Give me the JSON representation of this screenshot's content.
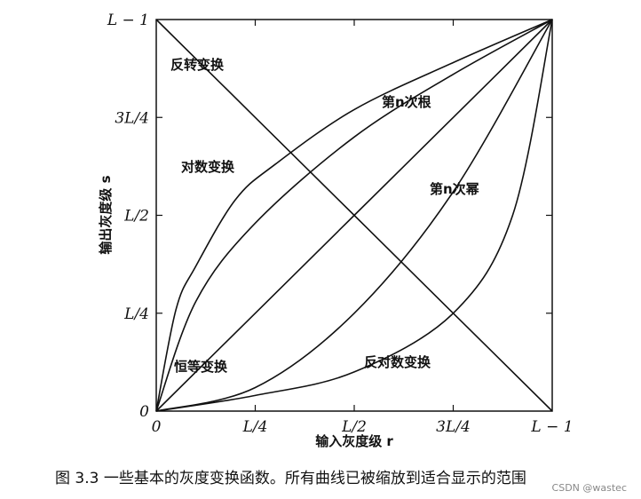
{
  "chart_data": {
    "type": "line",
    "xlabel": "输入灰度级 r",
    "ylabel": "输出灰度级 s",
    "xlim": [
      0,
      1
    ],
    "ylim": [
      0,
      1
    ],
    "x_ticks": [
      {
        "value": 0,
        "label": "0"
      },
      {
        "value": 0.25,
        "label": "L/4"
      },
      {
        "value": 0.5,
        "label": "L/2"
      },
      {
        "value": 0.75,
        "label": "3L/4"
      },
      {
        "value": 1,
        "label": "L − 1"
      }
    ],
    "y_ticks": [
      {
        "value": 0,
        "label": "0"
      },
      {
        "value": 0.25,
        "label": "L/4"
      },
      {
        "value": 0.5,
        "label": "L/2"
      },
      {
        "value": 0.75,
        "label": "3L/4"
      },
      {
        "value": 1,
        "label": "L − 1"
      }
    ],
    "grid": false,
    "series": [
      {
        "name": "反转变换",
        "values": [
          [
            0,
            1
          ],
          [
            0.25,
            0.75
          ],
          [
            0.5,
            0.5
          ],
          [
            0.75,
            0.25
          ],
          [
            1,
            0
          ]
        ]
      },
      {
        "name": "对数变换",
        "values": [
          [
            0,
            0
          ],
          [
            0.05,
            0.26
          ],
          [
            0.1,
            0.37
          ],
          [
            0.2,
            0.54
          ],
          [
            0.3,
            0.63
          ],
          [
            0.5,
            0.77
          ],
          [
            0.75,
            0.89
          ],
          [
            1,
            1
          ]
        ]
      },
      {
        "name": "第n次根",
        "values": [
          [
            0,
            0
          ],
          [
            0.1,
            0.28
          ],
          [
            0.25,
            0.48
          ],
          [
            0.5,
            0.7
          ],
          [
            0.75,
            0.86
          ],
          [
            1,
            1
          ]
        ]
      },
      {
        "name": "恒等变换",
        "values": [
          [
            0,
            0
          ],
          [
            0.25,
            0.25
          ],
          [
            0.5,
            0.5
          ],
          [
            0.75,
            0.75
          ],
          [
            1,
            1
          ]
        ]
      },
      {
        "name": "第n次幂",
        "values": [
          [
            0,
            0
          ],
          [
            0.25,
            0.06
          ],
          [
            0.5,
            0.25
          ],
          [
            0.75,
            0.56
          ],
          [
            1,
            1
          ]
        ]
      },
      {
        "name": "反对数变换",
        "values": [
          [
            0,
            0
          ],
          [
            0.25,
            0.04
          ],
          [
            0.5,
            0.1
          ],
          [
            0.75,
            0.25
          ],
          [
            0.9,
            0.5
          ],
          [
            1,
            1
          ]
        ]
      }
    ]
  },
  "caption": "图 3.3   一些基本的灰度变换函数。所有曲线已被缩放到适合显示的范围",
  "watermark": "CSDN @wastec"
}
